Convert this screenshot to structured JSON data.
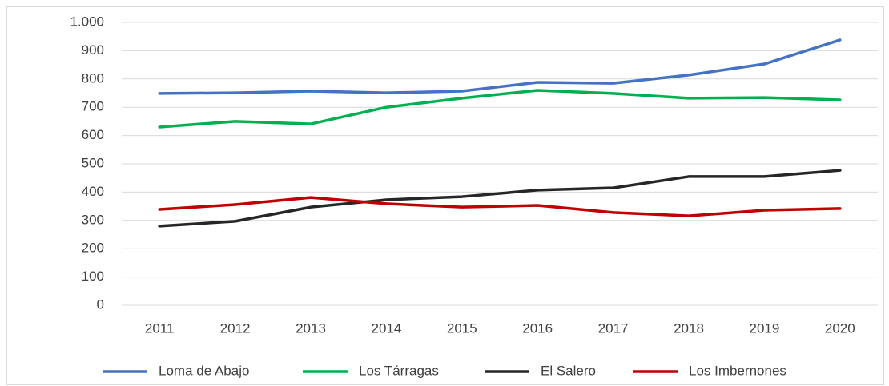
{
  "chart_data": {
    "type": "line",
    "categories": [
      "2011",
      "2012",
      "2013",
      "2014",
      "2015",
      "2016",
      "2017",
      "2018",
      "2019",
      "2020"
    ],
    "series": [
      {
        "name": "Loma de Abajo",
        "color": "#4472c4",
        "values": [
          749,
          751,
          757,
          751,
          757,
          788,
          785,
          814,
          853,
          938
        ]
      },
      {
        "name": "Los Tárragas",
        "color": "#00b050",
        "values": [
          630,
          650,
          641,
          700,
          732,
          760,
          749,
          732,
          734,
          726
        ]
      },
      {
        "name": "El Salero",
        "color": "#262626",
        "values": [
          280,
          297,
          347,
          373,
          384,
          407,
          415,
          455,
          455,
          477
        ]
      },
      {
        "name": "Los Imbernones",
        "color": "#c00000",
        "values": [
          339,
          356,
          381,
          359,
          347,
          353,
          328,
          316,
          336,
          342
        ]
      }
    ],
    "ylim": [
      0,
      1000
    ],
    "yticks": [
      0,
      100,
      200,
      300,
      400,
      500,
      600,
      700,
      800,
      900,
      {
        "value": 1000,
        "label": "1.000"
      }
    ],
    "grid": true,
    "legend": "bottom"
  }
}
